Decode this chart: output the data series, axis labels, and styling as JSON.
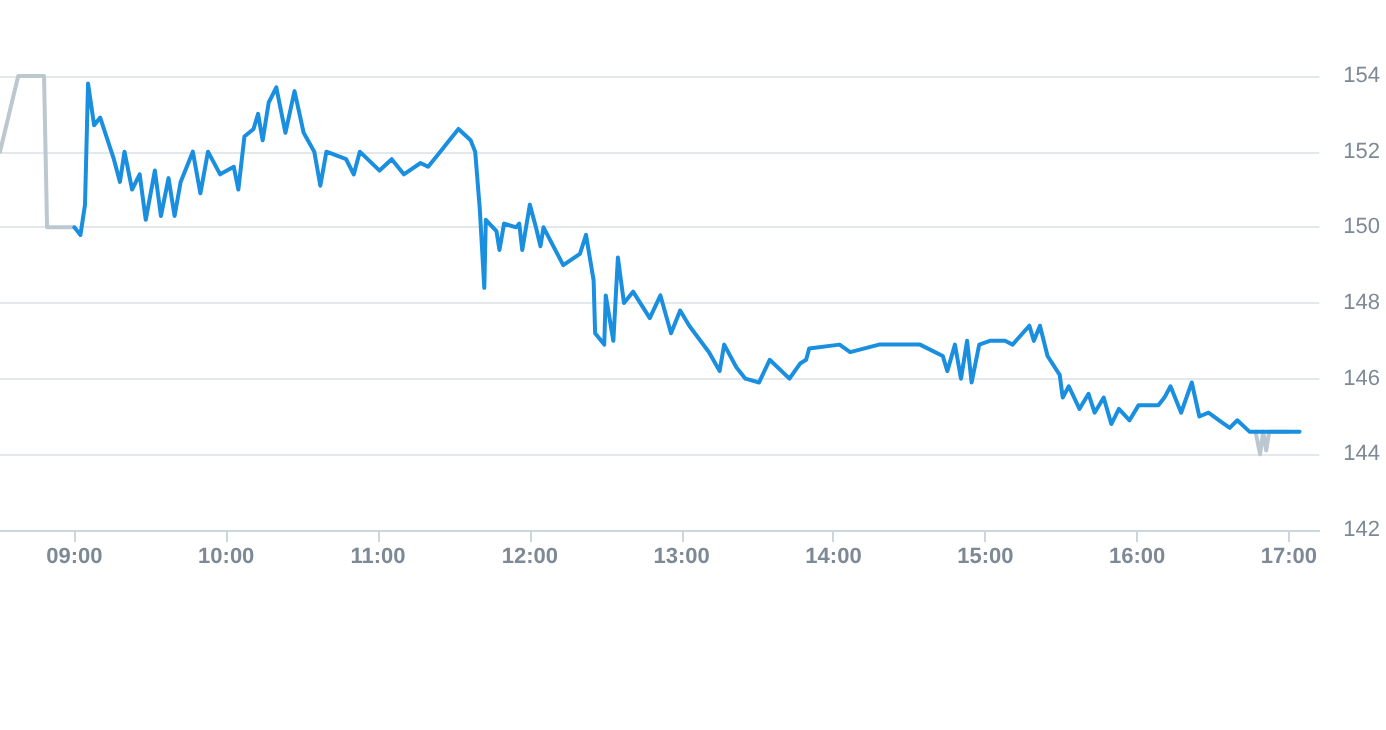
{
  "chart_data": {
    "type": "line",
    "xlim": [
      8.51,
      17.2
    ],
    "xticks": [
      {
        "value": 9,
        "label": "09:00"
      },
      {
        "value": 10,
        "label": "10:00"
      },
      {
        "value": 11,
        "label": "11:00"
      },
      {
        "value": 12,
        "label": "12:00"
      },
      {
        "value": 13,
        "label": "13:00"
      },
      {
        "value": 14,
        "label": "14:00"
      },
      {
        "value": 15,
        "label": "15:00"
      },
      {
        "value": 16,
        "label": "16:00"
      },
      {
        "value": 17,
        "label": "17:00"
      }
    ],
    "ylim": [
      142,
      154
    ],
    "yticks": [
      142,
      144,
      146,
      148,
      150,
      152,
      154
    ],
    "grid": "y",
    "marker": "none",
    "line_style": "solid",
    "series": [
      {
        "color": "#bcc8d0",
        "x": [
          8.51,
          8.63,
          8.8,
          8.82,
          9.0,
          12.0,
          16.78,
          16.81,
          16.83,
          16.85,
          16.87,
          17.0
        ],
        "values": [
          152.0,
          154.0,
          154.0,
          150.0,
          150.0,
          null,
          144.6,
          144.0,
          144.6,
          144.1,
          144.6,
          144.6
        ]
      },
      {
        "color": "#1a8fe0",
        "x": [
          9.0,
          9.04,
          9.07,
          9.09,
          9.13,
          9.17,
          9.26,
          9.3,
          9.33,
          9.38,
          9.43,
          9.47,
          9.53,
          9.57,
          9.62,
          9.66,
          9.7,
          9.78,
          9.83,
          9.88,
          9.96,
          10.05,
          10.08,
          10.12,
          10.18,
          10.21,
          10.24,
          10.28,
          10.33,
          10.39,
          10.45,
          10.51,
          10.58,
          10.62,
          10.66,
          10.79,
          10.84,
          10.88,
          11.01,
          11.09,
          11.17,
          11.28,
          11.33,
          11.41,
          11.47,
          11.53,
          11.61,
          11.64,
          11.67,
          11.7,
          11.71,
          11.78,
          11.8,
          11.83,
          11.91,
          11.93,
          11.95,
          12.0,
          12.04,
          12.07,
          12.09,
          12.22,
          12.33,
          12.37,
          12.42,
          12.43,
          12.49,
          12.5,
          12.55,
          12.58,
          12.62,
          12.68,
          12.79,
          12.86,
          12.93,
          12.99,
          13.05,
          13.18,
          13.25,
          13.28,
          13.36,
          13.42,
          13.51,
          13.58,
          13.71,
          13.78,
          13.82,
          13.84,
          14.04,
          14.11,
          14.3,
          14.57,
          14.72,
          14.75,
          14.8,
          14.84,
          14.88,
          14.91,
          14.96,
          15.03,
          15.13,
          15.18,
          15.29,
          15.32,
          15.36,
          15.41,
          15.49,
          15.51,
          15.55,
          15.62,
          15.68,
          15.72,
          15.78,
          15.83,
          15.88,
          15.95,
          16.01,
          16.14,
          16.18,
          16.22,
          16.29,
          16.36,
          16.41,
          16.47,
          16.54,
          16.61,
          16.66,
          16.74,
          17.07
        ],
        "values": [
          150.0,
          149.8,
          150.6,
          153.8,
          152.7,
          152.9,
          151.8,
          151.2,
          152.0,
          151.0,
          151.4,
          150.2,
          151.5,
          150.3,
          151.3,
          150.3,
          151.2,
          152.0,
          150.9,
          152.0,
          151.4,
          151.6,
          151.0,
          152.4,
          152.6,
          153.0,
          152.3,
          153.3,
          153.7,
          152.5,
          153.6,
          152.5,
          152.0,
          151.1,
          152.0,
          151.8,
          151.4,
          152.0,
          151.5,
          151.8,
          151.4,
          151.7,
          151.6,
          152.0,
          152.3,
          152.6,
          152.3,
          152.0,
          150.5,
          148.4,
          150.2,
          149.9,
          149.4,
          150.1,
          150.0,
          150.1,
          149.4,
          150.6,
          150.0,
          149.5,
          150.0,
          149.0,
          149.3,
          149.8,
          148.6,
          147.2,
          146.9,
          148.2,
          147.0,
          149.2,
          148.0,
          148.3,
          147.6,
          148.2,
          147.2,
          147.8,
          147.4,
          146.7,
          146.2,
          146.9,
          146.3,
          146.0,
          145.9,
          146.5,
          146.0,
          146.4,
          146.5,
          146.8,
          146.9,
          146.7,
          146.9,
          146.9,
          146.6,
          146.2,
          146.9,
          146.0,
          147.0,
          145.9,
          146.9,
          147.0,
          147.0,
          146.9,
          147.4,
          147.0,
          147.4,
          146.6,
          146.1,
          145.5,
          145.8,
          145.2,
          145.6,
          145.1,
          145.5,
          144.8,
          145.2,
          144.9,
          145.3,
          145.3,
          145.5,
          145.8,
          145.1,
          145.9,
          145.0,
          145.1,
          144.9,
          144.7,
          144.9,
          144.6,
          144.6
        ]
      }
    ]
  }
}
